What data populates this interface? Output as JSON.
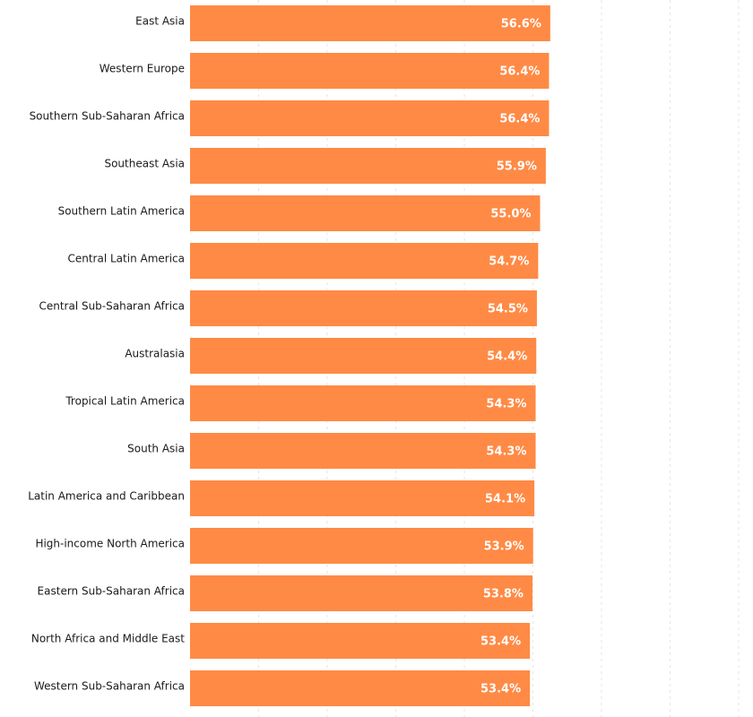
{
  "chart_data": {
    "type": "bar",
    "orientation": "horizontal",
    "categories": [
      "East Asia",
      "Western Europe",
      "Southern Sub-Saharan Africa",
      "Southeast Asia",
      "Southern Latin America",
      "Central Latin America",
      "Central Sub-Saharan Africa",
      "Australasia",
      "Tropical Latin America",
      "South Asia",
      "Latin America and Caribbean",
      "High-income North America",
      "Eastern Sub-Saharan Africa",
      "North Africa and Middle East",
      "Western Sub-Saharan Africa"
    ],
    "values": [
      56.6,
      56.4,
      56.4,
      55.9,
      55.0,
      54.7,
      54.5,
      54.4,
      54.3,
      54.3,
      54.1,
      53.9,
      53.8,
      53.4,
      53.4
    ],
    "value_labels": [
      "56.6%",
      "56.4%",
      "56.4%",
      "55.9%",
      "55.0%",
      "54.7%",
      "54.5%",
      "54.4%",
      "54.3%",
      "54.3%",
      "54.1%",
      "53.9%",
      "53.8%",
      "53.4%",
      "53.4%"
    ],
    "bar_color": "#ff8a45",
    "grid": true,
    "title": "",
    "xlabel": "",
    "ylabel": ""
  }
}
